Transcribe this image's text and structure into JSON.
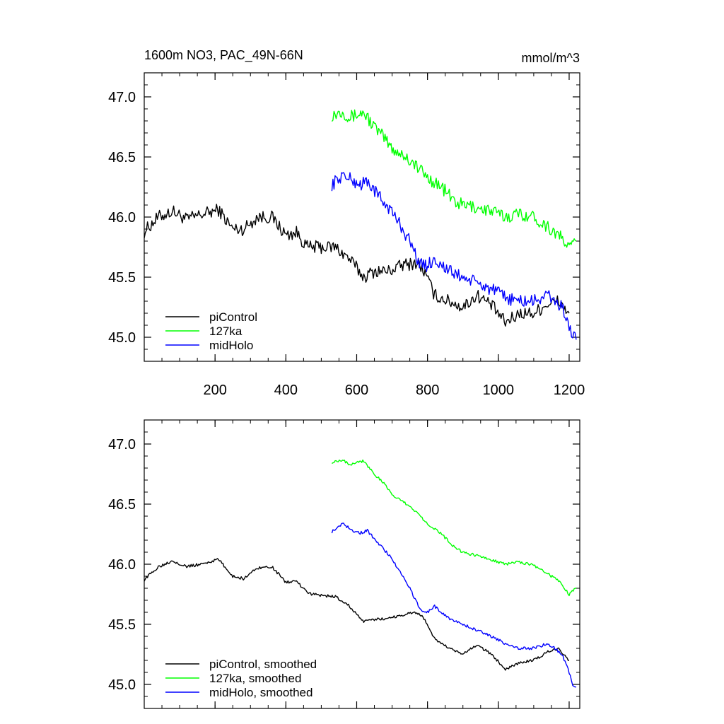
{
  "title_left": "1600m NO3, PAC_49N-66N",
  "title_right": "mmol/m^3",
  "chart_data": [
    {
      "type": "line",
      "panel": "top",
      "xlim": [
        0,
        1230
      ],
      "ylim": [
        44.8,
        47.2
      ],
      "xticks": [
        200,
        400,
        600,
        800,
        1000,
        1200
      ],
      "xtick_labels": [
        "200",
        "400",
        "600",
        "800",
        "1000",
        "1200"
      ],
      "yticks": [
        45.0,
        45.5,
        46.0,
        46.5,
        47.0
      ],
      "ytick_labels": [
        "45.0",
        "45.5",
        "46.0",
        "46.5",
        "47.0"
      ],
      "legend_position": "bottom-left",
      "series": [
        {
          "name": "piControl",
          "color": "#000000",
          "x": [
            0,
            40,
            80,
            120,
            160,
            210,
            250,
            280,
            320,
            360,
            400,
            430,
            460,
            500,
            540,
            580,
            620,
            650,
            690,
            730,
            770,
            790,
            820,
            860,
            900,
            940,
            980,
            1020,
            1060,
            1100,
            1140,
            1170,
            1200
          ],
          "y": [
            45.88,
            46.0,
            46.05,
            45.98,
            46.02,
            46.06,
            45.9,
            45.9,
            46.0,
            46.0,
            45.85,
            45.87,
            45.75,
            45.75,
            45.75,
            45.65,
            45.5,
            45.55,
            45.55,
            45.6,
            45.62,
            45.55,
            45.35,
            45.3,
            45.25,
            45.35,
            45.27,
            45.12,
            45.2,
            45.2,
            45.28,
            45.3,
            45.2
          ]
        },
        {
          "name": "127ka",
          "color": "#00ff00",
          "x": [
            530,
            560,
            580,
            600,
            620,
            650,
            680,
            700,
            730,
            760,
            800,
            840,
            880,
            900,
            940,
            980,
            1020,
            1060,
            1100,
            1140,
            1170,
            1190,
            1200,
            1220
          ],
          "y": [
            46.85,
            46.88,
            46.83,
            46.85,
            46.87,
            46.75,
            46.65,
            46.57,
            46.52,
            46.45,
            46.33,
            46.25,
            46.12,
            46.1,
            46.08,
            46.05,
            46.0,
            46.03,
            46.0,
            45.92,
            45.85,
            45.78,
            45.75,
            45.8
          ]
        },
        {
          "name": "midHolo",
          "color": "#0000ff",
          "x": [
            530,
            560,
            590,
            610,
            630,
            660,
            690,
            720,
            750,
            780,
            800,
            820,
            860,
            900,
            940,
            980,
            1020,
            1060,
            1100,
            1140,
            1160,
            1180,
            1200,
            1210,
            1220
          ],
          "y": [
            46.27,
            46.35,
            46.3,
            46.27,
            46.3,
            46.18,
            46.08,
            45.95,
            45.8,
            45.6,
            45.6,
            45.65,
            45.55,
            45.5,
            45.45,
            45.4,
            45.33,
            45.3,
            45.3,
            45.35,
            45.3,
            45.25,
            45.1,
            45.0,
            44.98
          ]
        }
      ]
    },
    {
      "type": "line",
      "panel": "bottom",
      "xlim": [
        0,
        1230
      ],
      "ylim": [
        44.8,
        47.2
      ],
      "xticks": [
        200,
        400,
        600,
        800,
        1000,
        1200
      ],
      "xtick_labels": [],
      "yticks": [
        45.0,
        45.5,
        46.0,
        46.5,
        47.0
      ],
      "ytick_labels": [
        "45.0",
        "45.5",
        "46.0",
        "46.5",
        "47.0"
      ],
      "legend_position": "bottom-left",
      "series": [
        {
          "name": "piControl, smoothed",
          "color": "#000000",
          "x": [
            0,
            40,
            80,
            120,
            160,
            210,
            250,
            280,
            320,
            360,
            400,
            430,
            460,
            500,
            540,
            580,
            620,
            650,
            690,
            730,
            770,
            790,
            820,
            860,
            900,
            940,
            980,
            1020,
            1060,
            1100,
            1140,
            1170,
            1200
          ],
          "y": [
            45.87,
            45.98,
            46.03,
            45.98,
            46.0,
            46.04,
            45.9,
            45.88,
            45.97,
            45.98,
            45.85,
            45.86,
            45.76,
            45.74,
            45.73,
            45.65,
            45.52,
            45.54,
            45.55,
            45.58,
            45.6,
            45.55,
            45.38,
            45.3,
            45.25,
            45.33,
            45.25,
            45.13,
            45.18,
            45.2,
            45.27,
            45.3,
            45.2
          ]
        },
        {
          "name": "127ka, smoothed",
          "color": "#00ff00",
          "x": [
            530,
            560,
            580,
            600,
            620,
            650,
            680,
            700,
            730,
            760,
            800,
            840,
            880,
            900,
            940,
            980,
            1020,
            1060,
            1100,
            1140,
            1170,
            1190,
            1200,
            1220
          ],
          "y": [
            46.85,
            46.87,
            46.83,
            46.85,
            46.86,
            46.75,
            46.66,
            46.58,
            46.52,
            46.46,
            46.34,
            46.25,
            46.13,
            46.1,
            46.07,
            46.04,
            46.0,
            46.02,
            45.99,
            45.92,
            45.86,
            45.79,
            45.75,
            45.8
          ]
        },
        {
          "name": "midHolo, smoothed",
          "color": "#0000ff",
          "x": [
            530,
            560,
            590,
            610,
            630,
            660,
            690,
            720,
            750,
            780,
            800,
            820,
            860,
            900,
            940,
            980,
            1020,
            1060,
            1100,
            1140,
            1160,
            1180,
            1200,
            1210,
            1220
          ],
          "y": [
            46.27,
            46.34,
            46.28,
            46.26,
            46.28,
            46.18,
            46.08,
            45.95,
            45.8,
            45.62,
            45.6,
            45.65,
            45.55,
            45.5,
            45.45,
            45.4,
            45.34,
            45.3,
            45.3,
            45.34,
            45.3,
            45.25,
            45.1,
            45.0,
            44.98
          ]
        }
      ]
    }
  ]
}
